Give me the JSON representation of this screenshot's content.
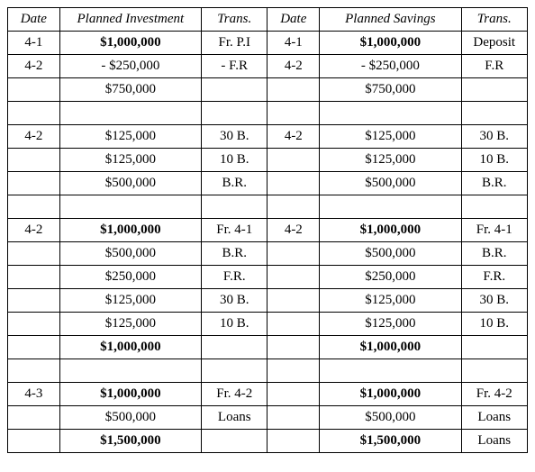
{
  "headers": [
    "Date",
    "Planned Investment",
    "Trans.",
    "Date",
    "Planned Savings",
    "Trans."
  ],
  "rows": [
    {
      "cells": [
        "4-1",
        "$1,000,000",
        "Fr. P.I",
        "4-1",
        "$1,000,000",
        "Deposit"
      ],
      "bold": [
        false,
        true,
        false,
        false,
        true,
        false
      ]
    },
    {
      "cells": [
        "4-2",
        "- $250,000",
        "- F.R",
        "4-2",
        "- $250,000",
        "F.R"
      ],
      "bold": [
        false,
        false,
        false,
        false,
        false,
        false
      ]
    },
    {
      "cells": [
        "",
        "$750,000",
        "",
        "",
        "$750,000",
        ""
      ],
      "bold": [
        false,
        false,
        false,
        false,
        false,
        false
      ]
    },
    {
      "cells": [
        "",
        "",
        "",
        "",
        "",
        ""
      ],
      "bold": [
        false,
        false,
        false,
        false,
        false,
        false
      ]
    },
    {
      "cells": [
        "4-2",
        "$125,000",
        "30 B.",
        "4-2",
        "$125,000",
        "30 B."
      ],
      "bold": [
        false,
        false,
        false,
        false,
        false,
        false
      ]
    },
    {
      "cells": [
        "",
        "$125,000",
        "10 B.",
        "",
        "$125,000",
        "10 B."
      ],
      "bold": [
        false,
        false,
        false,
        false,
        false,
        false
      ]
    },
    {
      "cells": [
        "",
        "$500,000",
        "B.R.",
        "",
        "$500,000",
        "B.R."
      ],
      "bold": [
        false,
        false,
        false,
        false,
        false,
        false
      ]
    },
    {
      "cells": [
        "",
        "",
        "",
        "",
        "",
        ""
      ],
      "bold": [
        false,
        false,
        false,
        false,
        false,
        false
      ]
    },
    {
      "cells": [
        "4-2",
        "$1,000,000",
        "Fr. 4-1",
        "4-2",
        "$1,000,000",
        "Fr. 4-1"
      ],
      "bold": [
        false,
        true,
        false,
        false,
        true,
        false
      ]
    },
    {
      "cells": [
        "",
        "$500,000",
        "B.R.",
        "",
        "$500,000",
        "B.R."
      ],
      "bold": [
        false,
        false,
        false,
        false,
        false,
        false
      ]
    },
    {
      "cells": [
        "",
        "$250,000",
        "F.R.",
        "",
        "$250,000",
        "F.R."
      ],
      "bold": [
        false,
        false,
        false,
        false,
        false,
        false
      ]
    },
    {
      "cells": [
        "",
        "$125,000",
        "30 B.",
        "",
        "$125,000",
        "30 B."
      ],
      "bold": [
        false,
        false,
        false,
        false,
        false,
        false
      ]
    },
    {
      "cells": [
        "",
        "$125,000",
        "10 B.",
        "",
        "$125,000",
        "10 B."
      ],
      "bold": [
        false,
        false,
        false,
        false,
        false,
        false
      ]
    },
    {
      "cells": [
        "",
        "$1,000,000",
        "",
        "",
        "$1,000,000",
        ""
      ],
      "bold": [
        false,
        true,
        false,
        false,
        true,
        false
      ]
    },
    {
      "cells": [
        "",
        "",
        "",
        "",
        "",
        ""
      ],
      "bold": [
        false,
        false,
        false,
        false,
        false,
        false
      ]
    },
    {
      "cells": [
        "4-3",
        "$1,000,000",
        "Fr. 4-2",
        "",
        "$1,000,000",
        "Fr. 4-2"
      ],
      "bold": [
        false,
        true,
        false,
        false,
        true,
        false
      ]
    },
    {
      "cells": [
        "",
        "$500,000",
        "Loans",
        "",
        "$500,000",
        "Loans"
      ],
      "bold": [
        false,
        false,
        false,
        false,
        false,
        false
      ]
    },
    {
      "cells": [
        "",
        "$1,500,000",
        "",
        "",
        "$1,500,000",
        "Loans"
      ],
      "bold": [
        false,
        true,
        false,
        false,
        true,
        false
      ]
    }
  ],
  "col_classes": [
    "col-date",
    "col-amount",
    "col-trans",
    "col-date",
    "col-amount",
    "col-trans"
  ]
}
